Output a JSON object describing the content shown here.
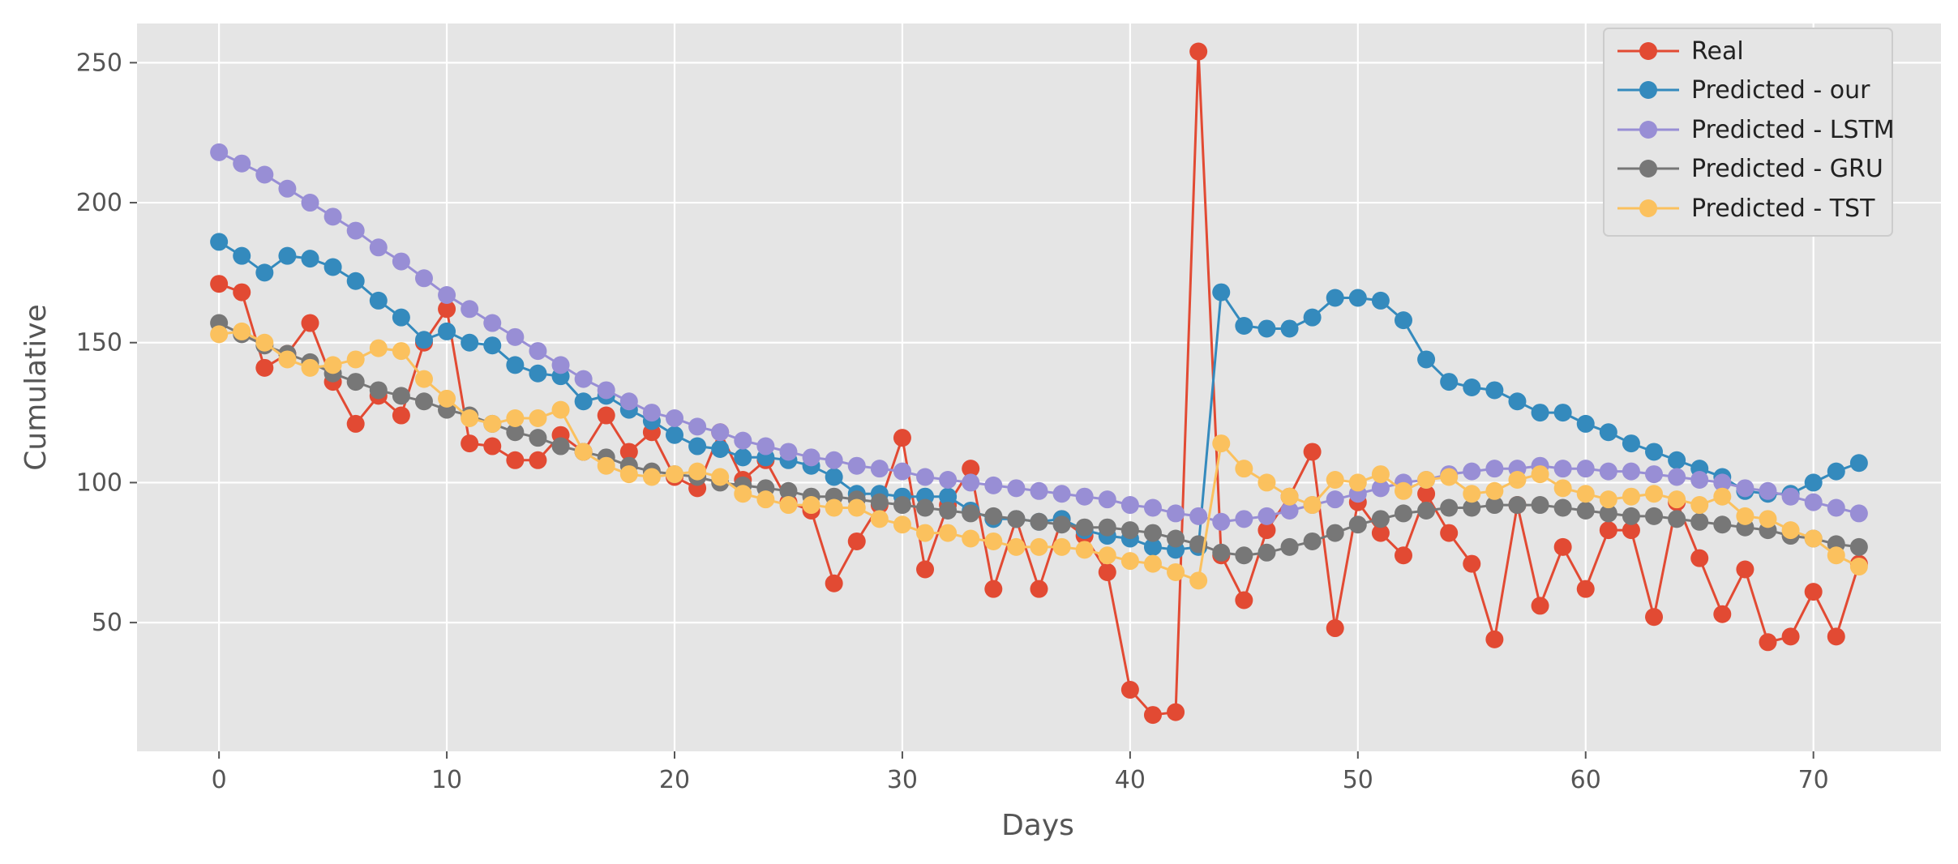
{
  "chart_data": {
    "type": "line",
    "title": "",
    "xlabel": "Days",
    "ylabel": "Cumulative",
    "xlim": [
      -3.6,
      75.6
    ],
    "ylim": [
      4,
      264
    ],
    "xticks": [
      0,
      10,
      20,
      30,
      40,
      50,
      60,
      70
    ],
    "yticks": [
      50,
      100,
      150,
      200,
      250
    ],
    "grid": true,
    "legend_position": "top-right",
    "x": [
      0,
      1,
      2,
      3,
      4,
      5,
      6,
      7,
      8,
      9,
      10,
      11,
      12,
      13,
      14,
      15,
      16,
      17,
      18,
      19,
      20,
      21,
      22,
      23,
      24,
      25,
      26,
      27,
      28,
      29,
      30,
      31,
      32,
      33,
      34,
      35,
      36,
      37,
      38,
      39,
      40,
      41,
      42,
      43,
      44,
      45,
      46,
      47,
      48,
      49,
      50,
      51,
      52,
      53,
      54,
      55,
      56,
      57,
      58,
      59,
      60,
      61,
      62,
      63,
      64,
      65,
      66,
      67,
      68,
      69,
      70,
      71,
      72
    ],
    "series": [
      {
        "name": "Real",
        "color": "#e24a33",
        "values": [
          171,
          168,
          141,
          146,
          157,
          136,
          121,
          131,
          124,
          150,
          162,
          114,
          113,
          108,
          108,
          117,
          111,
          124,
          111,
          118,
          102,
          98,
          118,
          101,
          108,
          93,
          90,
          64,
          79,
          92,
          116,
          69,
          92,
          105,
          62,
          87,
          62,
          87,
          81,
          68,
          26,
          17,
          18,
          254,
          74,
          58,
          83,
          95,
          111,
          48,
          93,
          82,
          74,
          96,
          82,
          71,
          44,
          92,
          56,
          77,
          62,
          83,
          83,
          52,
          93,
          73,
          53,
          69,
          43,
          45,
          61,
          45,
          71
        ]
      },
      {
        "name": "Predicted - our",
        "color": "#348abd",
        "values": [
          186,
          181,
          175,
          181,
          180,
          177,
          172,
          165,
          159,
          151,
          154,
          150,
          149,
          142,
          139,
          138,
          129,
          131,
          126,
          122,
          117,
          113,
          112,
          109,
          109,
          108,
          106,
          102,
          96,
          96,
          95,
          95,
          95,
          90,
          87,
          87,
          86,
          87,
          83,
          81,
          80,
          77,
          76,
          77,
          168,
          156,
          155,
          155,
          159,
          166,
          166,
          165,
          158,
          144,
          136,
          134,
          133,
          129,
          125,
          125,
          121,
          118,
          114,
          111,
          108,
          105,
          102,
          97,
          96,
          96,
          100,
          104,
          107
        ]
      },
      {
        "name": "Predicted - LSTM",
        "color": "#988ed5",
        "values": [
          218,
          214,
          210,
          205,
          200,
          195,
          190,
          184,
          179,
          173,
          167,
          162,
          157,
          152,
          147,
          142,
          137,
          133,
          129,
          125,
          123,
          120,
          118,
          115,
          113,
          111,
          109,
          108,
          106,
          105,
          104,
          102,
          101,
          100,
          99,
          98,
          97,
          96,
          95,
          94,
          92,
          91,
          89,
          88,
          86,
          87,
          88,
          90,
          92,
          94,
          96,
          98,
          100,
          101,
          103,
          104,
          105,
          105,
          106,
          105,
          105,
          104,
          104,
          103,
          102,
          101,
          100,
          98,
          97,
          95,
          93,
          91,
          89
        ]
      },
      {
        "name": "Predicted - GRU",
        "color": "#777777",
        "values": [
          157,
          153,
          149,
          146,
          143,
          139,
          136,
          133,
          131,
          129,
          126,
          124,
          121,
          118,
          116,
          113,
          111,
          109,
          106,
          104,
          103,
          102,
          100,
          99,
          98,
          97,
          95,
          95,
          94,
          93,
          92,
          91,
          90,
          89,
          88,
          87,
          86,
          85,
          84,
          84,
          83,
          82,
          80,
          78,
          75,
          74,
          75,
          77,
          79,
          82,
          85,
          87,
          89,
          90,
          91,
          91,
          92,
          92,
          92,
          91,
          90,
          89,
          88,
          88,
          87,
          86,
          85,
          84,
          83,
          81,
          80,
          78,
          77
        ]
      },
      {
        "name": "Predicted - TST",
        "color": "#fbc15e",
        "values": [
          153,
          154,
          150,
          144,
          141,
          142,
          144,
          148,
          147,
          137,
          130,
          123,
          121,
          123,
          123,
          126,
          111,
          106,
          103,
          102,
          103,
          104,
          102,
          96,
          94,
          92,
          92,
          91,
          91,
          87,
          85,
          82,
          82,
          80,
          79,
          77,
          77,
          77,
          76,
          74,
          72,
          71,
          68,
          65,
          114,
          105,
          100,
          95,
          92,
          101,
          100,
          103,
          97,
          101,
          102,
          96,
          97,
          101,
          103,
          98,
          96,
          94,
          95,
          96,
          94,
          92,
          95,
          88,
          87,
          83,
          80,
          74,
          70
        ]
      }
    ]
  }
}
